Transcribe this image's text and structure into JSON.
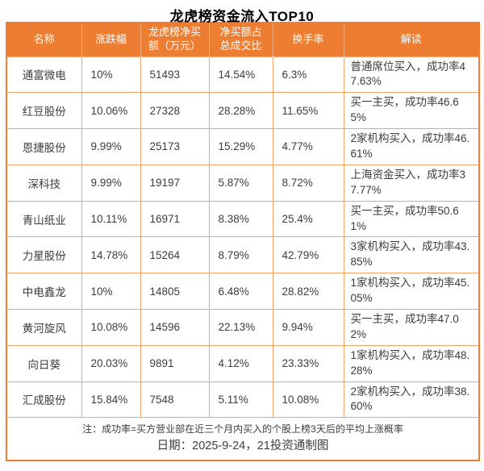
{
  "title": "龙虎榜资金流入TOP10",
  "colors": {
    "header_bg": "#ED7D31",
    "outer_border": "#ED7D31",
    "inner_border": "#F2A36B",
    "text": "#3C3C3C",
    "header_text": "#FFFFFF"
  },
  "table": {
    "column_keys": [
      "name",
      "change",
      "net_buy",
      "ratio",
      "turnover",
      "comment"
    ],
    "header_labels": [
      "名称",
      "涨跌幅",
      "龙虎榜净买\n额（万元）",
      "净买额占\n总成交比",
      "换手率",
      "解读"
    ]
  },
  "chart_data": {
    "type": "table",
    "title": "龙虎榜资金流入TOP10",
    "columns": [
      "名称",
      "涨跌幅",
      "龙虎榜净买额（万元）",
      "净买额占总成交比",
      "换手率",
      "解读"
    ],
    "rows": [
      [
        "通富微电",
        "10%",
        "51493",
        "14.54%",
        "6.3%",
        "普通席位买入，成功率47.63%"
      ],
      [
        "红豆股份",
        "10.06%",
        "27328",
        "28.28%",
        "11.65%",
        "买一主买，成功率46.65%"
      ],
      [
        "恩捷股份",
        "9.99%",
        "25173",
        "15.29%",
        "4.77%",
        "2家机构买入，成功率46.61%"
      ],
      [
        "深科技",
        "9.99%",
        "19197",
        "5.87%",
        "8.72%",
        "上海资金买入，成功率37.77%"
      ],
      [
        "青山纸业",
        "10.11%",
        "16971",
        "8.38%",
        "25.4%",
        "买一主买，成功率50.61%"
      ],
      [
        "力星股份",
        "14.78%",
        "15264",
        "8.79%",
        "42.79%",
        "3家机构买入，成功率43.85%"
      ],
      [
        "中电鑫龙",
        "10%",
        "14805",
        "6.48%",
        "28.82%",
        "1家机构买入，成功率45.05%"
      ],
      [
        "黄河旋风",
        "10.08%",
        "14596",
        "22.13%",
        "9.94%",
        "买一主买，成功率47.02%"
      ],
      [
        "向日葵",
        "20.03%",
        "9891",
        "4.12%",
        "23.33%",
        "1家机构买入，成功率48.28%"
      ],
      [
        "汇成股份",
        "15.84%",
        "7548",
        "5.11%",
        "10.08%",
        "2家机构买入，成功率38.60%"
      ]
    ],
    "note": "注：成功率=买方营业部在近三个月内买入的个股上榜3天后的平均上涨概率",
    "date_line": "日期：2025-9-24，21投资通制图"
  }
}
